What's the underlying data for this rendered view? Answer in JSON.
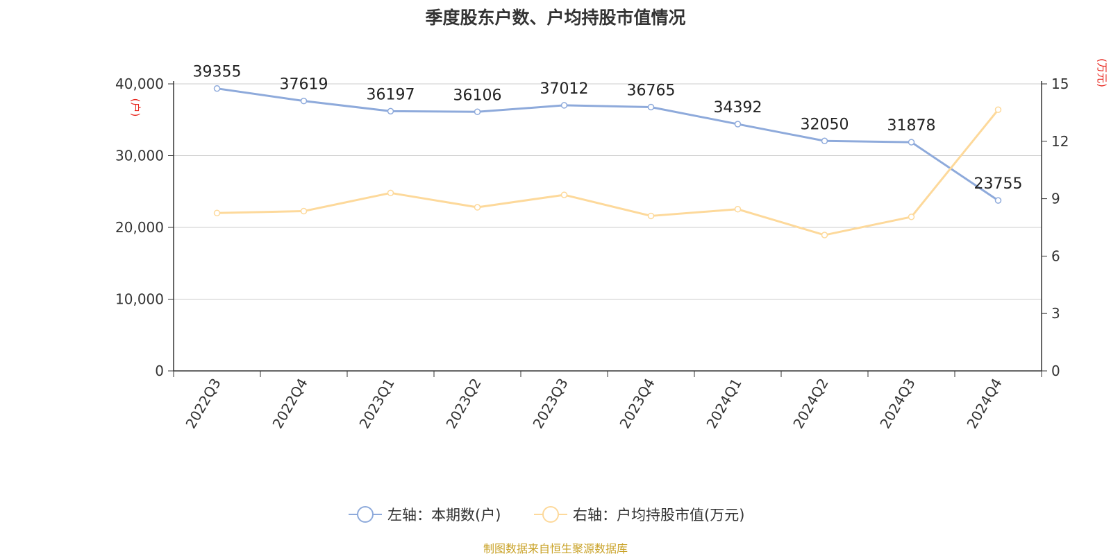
{
  "chart_data": {
    "type": "line",
    "title": "季度股东户数、户均持股市值情况",
    "categories": [
      "2022Q3",
      "2022Q4",
      "2023Q1",
      "2023Q2",
      "2023Q3",
      "2023Q4",
      "2024Q1",
      "2024Q2",
      "2024Q3",
      "2024Q4"
    ],
    "series": [
      {
        "name": "左轴：本期数(户)",
        "axis": "left",
        "color": "#8eaadb",
        "values": [
          39355,
          37619,
          36197,
          36106,
          37012,
          36765,
          34392,
          32050,
          31878,
          23755
        ],
        "data_labels": [
          "39355",
          "37619",
          "36197",
          "36106",
          "37012",
          "36765",
          "34392",
          "32050",
          "31878",
          "23755"
        ]
      },
      {
        "name": "右轴：户均持股市值(万元)",
        "axis": "right",
        "color": "#fdd99b",
        "values": [
          8.25,
          8.35,
          9.3,
          8.55,
          9.2,
          8.1,
          8.45,
          7.1,
          8.05,
          13.65
        ]
      }
    ],
    "left_axis": {
      "label": "(户)",
      "ylim": [
        0,
        40000
      ],
      "ticks": [
        0,
        10000,
        20000,
        30000,
        40000
      ],
      "tick_labels": [
        "0",
        "10,000",
        "20,000",
        "30,000",
        "40,000"
      ]
    },
    "right_axis": {
      "label": "(万元)",
      "ylim": [
        0,
        15
      ],
      "ticks": [
        0,
        3,
        6,
        9,
        12,
        15
      ],
      "tick_labels": [
        "0",
        "3",
        "6",
        "9",
        "12",
        "15"
      ]
    },
    "grid": true,
    "legend_position": "bottom",
    "source_text": "制图数据来自恒生聚源数据库",
    "colors": {
      "axis_label": "#e8261e",
      "source": "#c9a227",
      "grid": "#cccccc",
      "axis": "#333333",
      "text": "#333333"
    }
  }
}
